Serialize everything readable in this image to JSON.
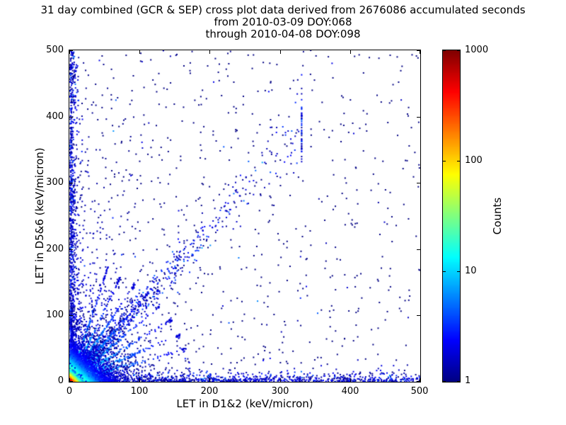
{
  "title": {
    "line1": "31 day combined (GCR & SEP) cross plot data derived from 2676086 accumulated seconds",
    "line2": "from 2010-03-09 DOY:068",
    "line3": "through 2010-04-08 DOY:098"
  },
  "chart_data": {
    "type": "scatter",
    "title": "31 day combined (GCR & SEP) cross plot data derived from 2676086 accumulated seconds from 2010-03-09 DOY:068 through 2010-04-08 DOY:098",
    "accumulated_seconds": 2676086,
    "period_start": "2010-03-09 DOY:068",
    "period_end": "2010-04-08 DOY:098",
    "xlabel": "LET in D1&2 (keV/micron)",
    "ylabel": "LET in D5&6 (keV/micron)",
    "xlim": [
      0,
      500
    ],
    "ylim": [
      0,
      500
    ],
    "xticks": [
      0,
      100,
      200,
      300,
      400,
      500
    ],
    "yticks": [
      0,
      100,
      200,
      300,
      400,
      500
    ],
    "grid": false,
    "colorbar": {
      "label": "Counts",
      "scale": "log",
      "min": 1,
      "max": 1000,
      "ticks": [
        1000,
        100,
        10,
        1
      ],
      "colormap": "jet"
    },
    "seed": 20100309,
    "point_clusters": [
      {
        "name": "background-sparse",
        "type": "uniform",
        "n": 650,
        "max": 500,
        "size": 2
      },
      {
        "name": "lower-left-scatter",
        "type": "exp2d",
        "n": 750,
        "sx": 45,
        "sy": 120,
        "vmax": 3,
        "size": 2
      },
      {
        "name": "x-axis-band",
        "type": "band-x",
        "n": 1150,
        "pow": 1.4,
        "max": 500,
        "scale": 5,
        "size": 2
      },
      {
        "name": "y-axis-band",
        "type": "band-y",
        "n": 950,
        "pow": 1.3,
        "max": 500,
        "scale": 3.5,
        "size": 2
      },
      {
        "name": "diagonal-band",
        "type": "diagonal",
        "n": 850,
        "slope": 1.15,
        "xscale": 110,
        "xmax": 330,
        "spread0": 6,
        "spreadk": 0.07,
        "size": 2
      },
      {
        "name": "origin-fan-streaks",
        "type": "fan",
        "n": 1700,
        "slopes": [
          0.3,
          0.45,
          0.65,
          0.9,
          1.2,
          1.6,
          2.2,
          3.2
        ],
        "scale": 55,
        "rmax": 170,
        "vmax": 18,
        "size": 2
      },
      {
        "name": "origin-halo",
        "type": "exp2d",
        "n": 2600,
        "sx": 22,
        "sy": 22,
        "vmax": 10,
        "size": 2
      },
      {
        "name": "origin-mid",
        "type": "exp2d",
        "n": 3000,
        "sx": 9,
        "sy": 9,
        "vmax": 120,
        "size": 2
      },
      {
        "name": "origin-core",
        "type": "exp2d",
        "n": 2600,
        "sx": 3,
        "sy": 3,
        "vmax": 1000,
        "size": 2
      }
    ]
  },
  "colors": {
    "background": "#ffffff",
    "axis": "#000000",
    "count_1": "#000083",
    "count_10": "#00d4ff",
    "count_100": "#ffe600",
    "count_1000": "#800000"
  }
}
